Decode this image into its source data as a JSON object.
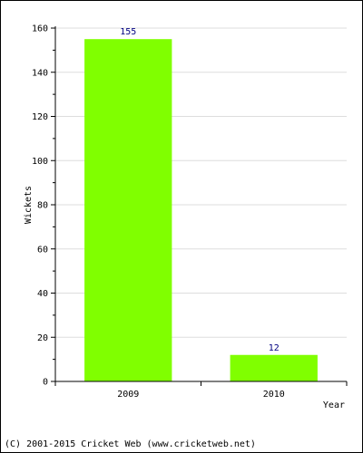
{
  "chart_data": {
    "type": "bar",
    "categories": [
      "2009",
      "2010"
    ],
    "values": [
      155,
      12
    ],
    "data_labels": [
      "155",
      "12"
    ],
    "xlabel": "Year",
    "ylabel": "Wickets",
    "ylim": [
      0,
      160
    ],
    "yticks": [
      "0",
      "20",
      "40",
      "60",
      "80",
      "100",
      "120",
      "140",
      "160"
    ],
    "grid": true,
    "legend": "none",
    "bar_color": "#80ff00",
    "data_label_color": "#000080",
    "grid_color": "#dddddd"
  },
  "footer": {
    "copyright": "(C) 2001-2015 Cricket Web (www.cricketweb.net)"
  }
}
